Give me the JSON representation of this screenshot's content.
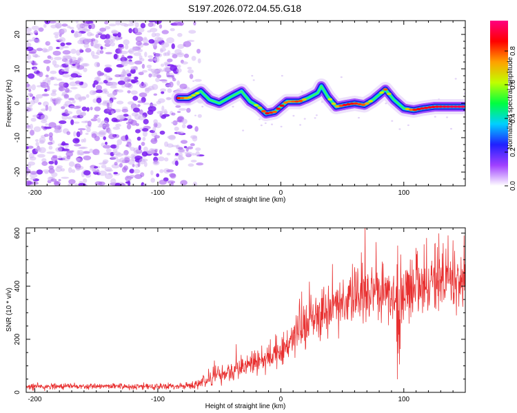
{
  "title": "S197.2026.072.04.55.G18",
  "chart_data": [
    {
      "type": "heatmap",
      "xlabel": "Height of straight line (km)",
      "ylabel": "Frequency (Hz)",
      "xlim": [
        -207,
        150
      ],
      "ylim": [
        -24,
        24
      ],
      "xticks": [
        -200,
        -100,
        0,
        100
      ],
      "yticks": [
        -20,
        -10,
        0,
        10,
        20
      ],
      "noise_region_x": [
        -207,
        -75
      ],
      "colorbar": {
        "label": "Normalized spectral amplitude",
        "range": [
          0,
          0.98
        ],
        "ticks": [
          "0.0",
          "0.2",
          "0.4",
          "0.6",
          "0.8"
        ],
        "tick_values": [
          0,
          0.2,
          0.4,
          0.6,
          0.8
        ],
        "colors": [
          "#ffffff",
          "#a040ff",
          "#2020ff",
          "#00d0ff",
          "#00ff40",
          "#c0ff00",
          "#ffa000",
          "#ff0000",
          "#ff0080"
        ]
      },
      "ridge": {
        "x": [
          -83,
          -75,
          -65,
          -58,
          -50,
          -40,
          -32,
          -25,
          -18,
          -12,
          -5,
          0,
          5,
          15,
          22,
          30,
          33,
          38,
          45,
          52,
          60,
          68,
          75,
          80,
          85,
          92,
          100,
          108,
          115,
          125,
          140,
          150
        ],
        "freq": [
          1.5,
          1.5,
          3.5,
          1.0,
          0.0,
          2.0,
          3.5,
          0.5,
          -1.0,
          -3.0,
          -2.5,
          -1.0,
          0.5,
          0.5,
          1.5,
          3.0,
          5.0,
          2.0,
          -1.0,
          -0.5,
          0.0,
          -0.5,
          1.0,
          2.5,
          4.0,
          1.0,
          -1.5,
          -2.0,
          -1.5,
          -1.0,
          -1.0,
          -1.0
        ],
        "amp": [
          0.85,
          0.7,
          0.6,
          0.55,
          0.6,
          0.55,
          0.5,
          0.55,
          0.65,
          0.9,
          0.8,
          0.9,
          0.75,
          0.85,
          0.6,
          0.55,
          0.5,
          0.6,
          0.7,
          0.9,
          0.85,
          0.8,
          0.6,
          0.55,
          0.8,
          0.5,
          0.6,
          0.85,
          0.9,
          0.9,
          0.95,
          0.95
        ]
      }
    },
    {
      "type": "line",
      "xlabel": "Height of straight line (km)",
      "ylabel": "SNR (10 * v/v)",
      "xlim": [
        -207,
        150
      ],
      "ylim": [
        0,
        620
      ],
      "xticks": [
        -200,
        -100,
        0,
        100
      ],
      "yticks": [
        0,
        200,
        400,
        600
      ],
      "series": [
        {
          "name": "SNR",
          "color": "#e83030",
          "trend_x": [
            -207,
            -150,
            -100,
            -70,
            -60,
            -40,
            -20,
            0,
            20,
            40,
            60,
            80,
            90,
            95,
            97,
            100,
            120,
            150
          ],
          "trend_y": [
            22,
            22,
            22,
            25,
            45,
            80,
            110,
            150,
            245,
            320,
            360,
            385,
            390,
            330,
            210,
            380,
            410,
            420
          ]
        }
      ]
    }
  ]
}
